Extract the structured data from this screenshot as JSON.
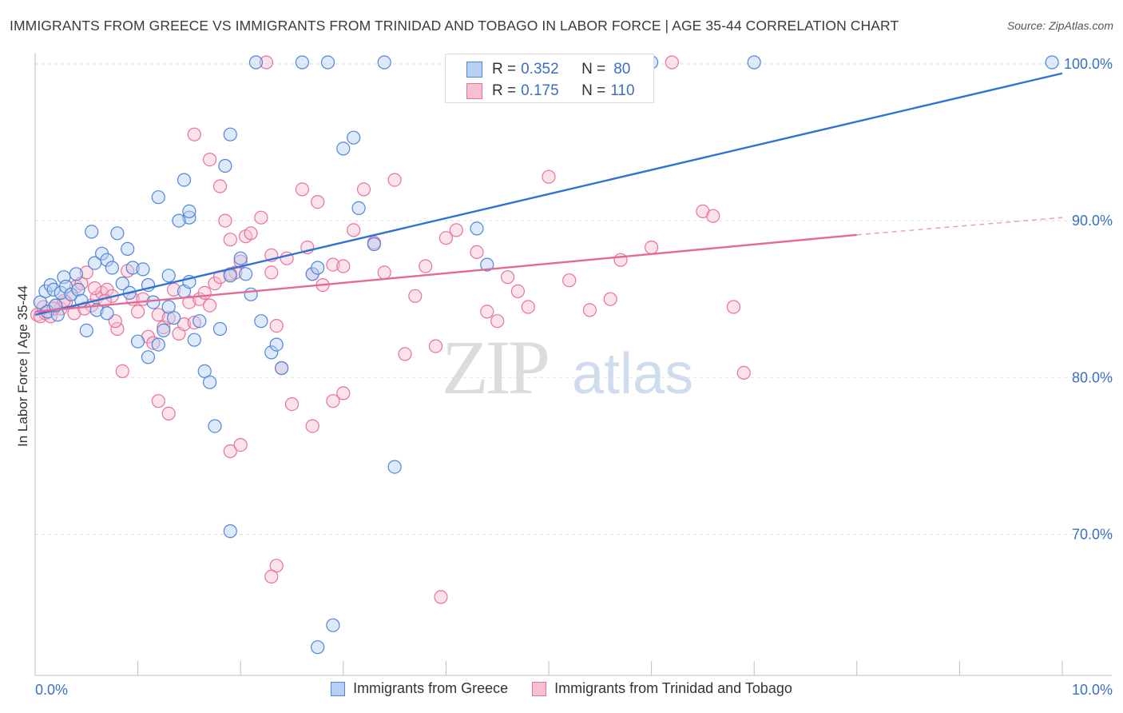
{
  "title": "IMMIGRANTS FROM GREECE VS IMMIGRANTS FROM TRINIDAD AND TOBAGO IN LABOR FORCE | AGE 35-44 CORRELATION CHART",
  "source": "Source: ZipAtlas.com",
  "watermark": {
    "zip": "ZIP",
    "atlas": "atlas"
  },
  "legend_top": [
    {
      "r_label": "R = ",
      "r_value": "0.352",
      "n_label": "N = ",
      "n_value": "80"
    },
    {
      "r_label": "R = ",
      "r_value": "0.175",
      "n_label": "N = ",
      "n_value": "110"
    }
  ],
  "chart_data": {
    "type": "scatter",
    "title": "IMMIGRANTS FROM GREECE VS IMMIGRANTS FROM TRINIDAD AND TOBAGO IN LABOR FORCE | AGE 35-44 CORRELATION CHART",
    "xlabel": "",
    "ylabel": "In Labor Force | Age 35-44",
    "xlim": [
      0,
      10
    ],
    "ylim": [
      61,
      101
    ],
    "x_tick_labels": [
      "0.0%",
      "10.0%"
    ],
    "y_ticks": [
      70,
      80,
      90,
      100
    ],
    "y_tick_labels": [
      "70.0%",
      "80.0%",
      "90.0%",
      "100.0%"
    ],
    "grid": true,
    "legend_position": "bottom",
    "series": [
      {
        "name": "Immigrants from Greece",
        "color": "#4f86d9",
        "fill": "#b6cff2",
        "trend": {
          "x": [
            0.0,
            10.0
          ],
          "y": [
            84.0,
            99.4
          ]
        },
        "points": [
          [
            0.05,
            84.8
          ],
          [
            0.1,
            85.5
          ],
          [
            0.12,
            84.2
          ],
          [
            0.15,
            85.9
          ],
          [
            0.18,
            85.6
          ],
          [
            0.22,
            84.0
          ],
          [
            0.25,
            85.4
          ],
          [
            0.28,
            86.4
          ],
          [
            0.3,
            85.8
          ],
          [
            0.35,
            85.3
          ],
          [
            0.4,
            86.6
          ],
          [
            0.42,
            85.6
          ],
          [
            0.45,
            84.9
          ],
          [
            0.5,
            83.0
          ],
          [
            0.55,
            89.3
          ],
          [
            0.58,
            87.3
          ],
          [
            0.65,
            87.9
          ],
          [
            0.7,
            87.5
          ],
          [
            0.75,
            87.0
          ],
          [
            0.8,
            89.2
          ],
          [
            0.85,
            86.0
          ],
          [
            0.9,
            88.2
          ],
          [
            0.92,
            85.4
          ],
          [
            0.95,
            87.0
          ],
          [
            1.0,
            82.3
          ],
          [
            1.05,
            86.9
          ],
          [
            1.1,
            81.3
          ],
          [
            1.15,
            84.8
          ],
          [
            1.2,
            82.1
          ],
          [
            1.25,
            83.0
          ],
          [
            1.3,
            84.5
          ],
          [
            1.35,
            83.8
          ],
          [
            1.45,
            85.5
          ],
          [
            1.5,
            86.1
          ],
          [
            1.55,
            82.4
          ],
          [
            1.6,
            83.6
          ],
          [
            1.65,
            80.4
          ],
          [
            1.7,
            79.7
          ],
          [
            1.75,
            76.9
          ],
          [
            1.8,
            83.1
          ],
          [
            1.9,
            86.5
          ],
          [
            2.0,
            87.6
          ],
          [
            2.1,
            85.3
          ],
          [
            2.2,
            83.6
          ],
          [
            2.3,
            81.6
          ],
          [
            2.35,
            82.1
          ],
          [
            2.4,
            80.6
          ],
          [
            2.7,
            86.6
          ],
          [
            2.75,
            87.0
          ],
          [
            3.0,
            94.6
          ],
          [
            3.1,
            95.3
          ],
          [
            3.15,
            90.8
          ],
          [
            3.3,
            88.5
          ],
          [
            3.5,
            74.3
          ],
          [
            4.3,
            89.5
          ],
          [
            4.4,
            87.2
          ],
          [
            1.45,
            92.6
          ],
          [
            1.2,
            91.5
          ],
          [
            1.5,
            90.2
          ],
          [
            1.4,
            90.0
          ],
          [
            1.5,
            90.6
          ],
          [
            1.85,
            93.5
          ],
          [
            1.9,
            95.5
          ],
          [
            1.9,
            70.2
          ],
          [
            2.05,
            86.6
          ],
          [
            2.75,
            62.8
          ],
          [
            2.9,
            64.2
          ],
          [
            2.15,
            100.1
          ],
          [
            2.6,
            100.1
          ],
          [
            2.85,
            100.1
          ],
          [
            3.4,
            100.1
          ],
          [
            5.1,
            100.1
          ],
          [
            6.0,
            100.1
          ],
          [
            7.0,
            100.1
          ],
          [
            9.9,
            100.1
          ],
          [
            1.3,
            86.5
          ],
          [
            1.1,
            85.9
          ],
          [
            0.6,
            84.3
          ],
          [
            0.2,
            84.6
          ],
          [
            0.7,
            84.1
          ]
        ]
      },
      {
        "name": "Immigrants from Trinidad and Tobago",
        "color": "#e8729c",
        "fill": "#f7bfd2",
        "trend": {
          "x": [
            0.0,
            8.0
          ],
          "y": [
            84.2,
            89.1
          ]
        },
        "trend_dashed": {
          "x": [
            8.0,
            10.0
          ],
          "y": [
            89.1,
            90.2
          ]
        },
        "points": [
          [
            0.02,
            84.0
          ],
          [
            0.05,
            83.9
          ],
          [
            0.08,
            84.5
          ],
          [
            0.1,
            84.1
          ],
          [
            0.12,
            84.2
          ],
          [
            0.15,
            83.9
          ],
          [
            0.2,
            84.6
          ],
          [
            0.25,
            84.4
          ],
          [
            0.3,
            84.8
          ],
          [
            0.35,
            85.3
          ],
          [
            0.4,
            85.8
          ],
          [
            0.45,
            86.0
          ],
          [
            0.5,
            86.7
          ],
          [
            0.55,
            84.6
          ],
          [
            0.6,
            85.1
          ],
          [
            0.65,
            85.4
          ],
          [
            0.7,
            85.6
          ],
          [
            0.75,
            85.2
          ],
          [
            0.8,
            83.1
          ],
          [
            0.85,
            80.4
          ],
          [
            0.9,
            86.8
          ],
          [
            0.95,
            85.0
          ],
          [
            1.0,
            84.2
          ],
          [
            1.05,
            85.0
          ],
          [
            1.1,
            82.6
          ],
          [
            1.15,
            82.2
          ],
          [
            1.2,
            84.0
          ],
          [
            1.25,
            83.2
          ],
          [
            1.3,
            83.8
          ],
          [
            1.35,
            85.6
          ],
          [
            1.4,
            82.8
          ],
          [
            1.45,
            83.4
          ],
          [
            1.5,
            84.8
          ],
          [
            1.55,
            83.5
          ],
          [
            1.6,
            85.0
          ],
          [
            1.65,
            85.4
          ],
          [
            1.7,
            84.6
          ],
          [
            1.75,
            86.0
          ],
          [
            1.8,
            86.4
          ],
          [
            1.85,
            90.0
          ],
          [
            1.9,
            88.8
          ],
          [
            1.95,
            86.7
          ],
          [
            2.0,
            87.4
          ],
          [
            2.05,
            89.0
          ],
          [
            2.1,
            89.2
          ],
          [
            2.2,
            90.2
          ],
          [
            2.3,
            86.7
          ],
          [
            2.35,
            83.3
          ],
          [
            2.45,
            87.6
          ],
          [
            2.6,
            92.0
          ],
          [
            2.65,
            88.3
          ],
          [
            2.7,
            86.6
          ],
          [
            2.75,
            91.2
          ],
          [
            2.8,
            85.9
          ],
          [
            2.9,
            87.2
          ],
          [
            3.0,
            87.1
          ],
          [
            3.1,
            89.4
          ],
          [
            3.2,
            92.0
          ],
          [
            3.3,
            88.6
          ],
          [
            3.4,
            86.7
          ],
          [
            3.5,
            92.6
          ],
          [
            3.6,
            81.5
          ],
          [
            3.7,
            85.2
          ],
          [
            3.8,
            87.1
          ],
          [
            3.9,
            82.0
          ],
          [
            4.0,
            88.9
          ],
          [
            4.1,
            89.4
          ],
          [
            4.3,
            88.0
          ],
          [
            4.4,
            84.2
          ],
          [
            4.5,
            83.6
          ],
          [
            4.6,
            86.4
          ],
          [
            4.7,
            85.5
          ],
          [
            4.8,
            84.5
          ],
          [
            5.0,
            92.8
          ],
          [
            5.2,
            86.2
          ],
          [
            5.4,
            84.3
          ],
          [
            5.6,
            85.0
          ],
          [
            5.7,
            87.5
          ],
          [
            6.0,
            88.3
          ],
          [
            6.5,
            90.6
          ],
          [
            6.6,
            90.3
          ],
          [
            6.8,
            84.5
          ],
          [
            6.9,
            80.3
          ],
          [
            1.55,
            95.5
          ],
          [
            1.7,
            93.9
          ],
          [
            1.8,
            92.2
          ],
          [
            2.3,
            87.8
          ],
          [
            2.4,
            80.6
          ],
          [
            2.5,
            78.3
          ],
          [
            2.7,
            76.9
          ],
          [
            2.9,
            78.5
          ],
          [
            3.0,
            79.0
          ],
          [
            1.9,
            75.3
          ],
          [
            2.0,
            75.7
          ],
          [
            1.2,
            78.5
          ],
          [
            1.3,
            77.7
          ],
          [
            2.35,
            68.0
          ],
          [
            2.3,
            67.3
          ],
          [
            3.95,
            66.0
          ],
          [
            2.25,
            100.1
          ],
          [
            6.2,
            100.1
          ],
          [
            5.4,
            100.1
          ],
          [
            1.9,
            86.6
          ],
          [
            0.18,
            84.4
          ],
          [
            0.28,
            84.9
          ],
          [
            0.38,
            84.1
          ],
          [
            0.48,
            84.4
          ],
          [
            0.58,
            85.7
          ],
          [
            0.68,
            84.9
          ],
          [
            0.78,
            83.6
          ]
        ]
      }
    ]
  }
}
